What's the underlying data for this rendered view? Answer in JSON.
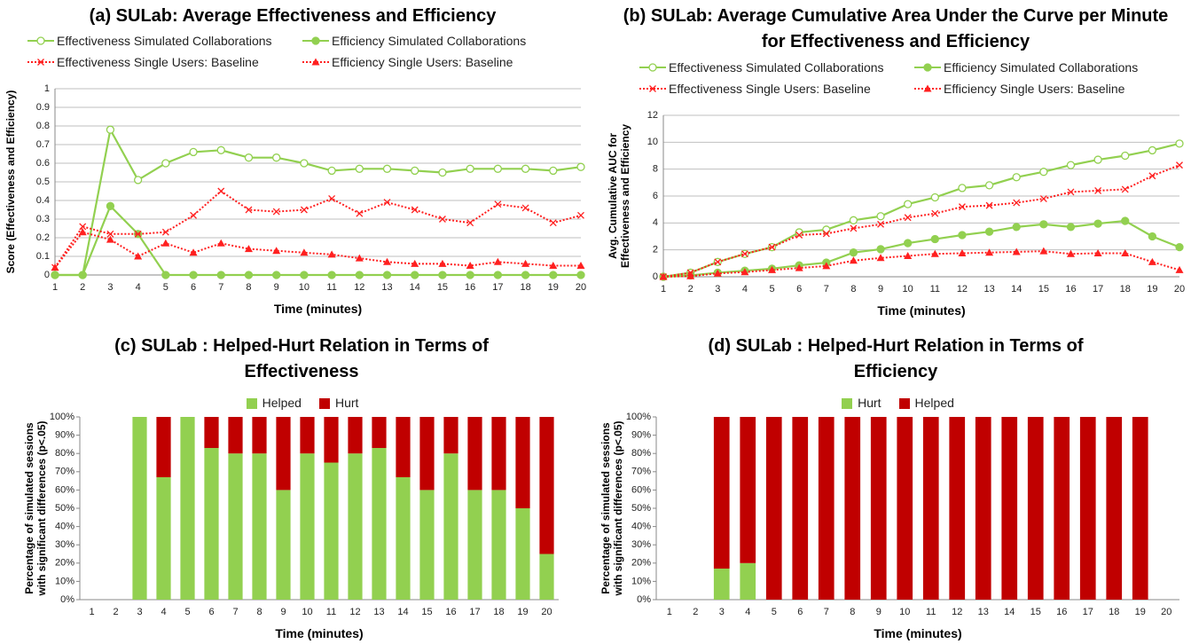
{
  "chart_data": [
    {
      "type": "line",
      "title": "(a) SULab: Average Effectiveness and Efficiency",
      "xlabel": "Time (minutes)",
      "ylabel": "Score (Effectiveness and Efficiency)",
      "categories": [
        1,
        2,
        3,
        4,
        5,
        6,
        7,
        8,
        9,
        10,
        11,
        12,
        13,
        14,
        15,
        16,
        17,
        18,
        19,
        20
      ],
      "ylim": [
        0,
        1
      ],
      "yticks": [
        0,
        0.1,
        0.2,
        0.3,
        0.4,
        0.5,
        0.6,
        0.7,
        0.8,
        0.9,
        1
      ],
      "grid": true,
      "series": [
        {
          "name": "Effectiveness Simulated Collaborations",
          "color": "#92d050",
          "marker": "circle-open",
          "dash": "solid",
          "values": [
            0,
            0,
            0.78,
            0.51,
            0.6,
            0.66,
            0.67,
            0.63,
            0.63,
            0.6,
            0.56,
            0.57,
            0.57,
            0.56,
            0.55,
            0.57,
            0.57,
            0.57,
            0.56,
            0.58
          ]
        },
        {
          "name": "Efficiency Simulated Collaborations",
          "color": "#92d050",
          "marker": "circle",
          "dash": "solid",
          "values": [
            0,
            0,
            0.37,
            0.22,
            0,
            0,
            0,
            0,
            0,
            0,
            0,
            0,
            0,
            0,
            0,
            0,
            0,
            0,
            0,
            0
          ]
        },
        {
          "name": "Effectiveness Single Users: Baseline",
          "color": "#ff2020",
          "marker": "x",
          "dash": "dotted",
          "values": [
            0.04,
            0.26,
            0.22,
            0.22,
            0.23,
            0.32,
            0.45,
            0.35,
            0.34,
            0.35,
            0.41,
            0.33,
            0.39,
            0.35,
            0.3,
            0.28,
            0.38,
            0.36,
            0.28,
            0.32
          ]
        },
        {
          "name": "Efficiency Single Users: Baseline",
          "color": "#ff2020",
          "marker": "triangle",
          "dash": "dotted",
          "values": [
            0.04,
            0.23,
            0.19,
            0.1,
            0.17,
            0.12,
            0.17,
            0.14,
            0.13,
            0.12,
            0.11,
            0.09,
            0.07,
            0.06,
            0.06,
            0.05,
            0.07,
            0.06,
            0.05,
            0.05
          ]
        }
      ]
    },
    {
      "type": "line",
      "title": "(b) SULab: Average Cumulative Area Under the Curve per Minute for Effectiveness and Efficiency",
      "xlabel": "Time (minutes)",
      "ylabel": "Avg. Cumulative AUC for Effectiveness and Efficiency",
      "categories": [
        1,
        2,
        3,
        4,
        5,
        6,
        7,
        8,
        9,
        10,
        11,
        12,
        13,
        14,
        15,
        16,
        17,
        18,
        19,
        20
      ],
      "ylim": [
        0,
        12
      ],
      "yticks": [
        0,
        2,
        4,
        6,
        8,
        10,
        12
      ],
      "grid": true,
      "series": [
        {
          "name": "Effectiveness Simulated Collaborations",
          "color": "#92d050",
          "marker": "circle-open",
          "dash": "solid",
          "values": [
            0,
            0.3,
            1.1,
            1.7,
            2.2,
            3.3,
            3.5,
            4.2,
            4.5,
            5.4,
            5.9,
            6.6,
            6.8,
            7.4,
            7.8,
            8.3,
            8.7,
            9.0,
            9.4,
            9.9
          ]
        },
        {
          "name": "Efficiency Simulated Collaborations",
          "color": "#92d050",
          "marker": "circle",
          "dash": "solid",
          "values": [
            0,
            0.1,
            0.3,
            0.45,
            0.6,
            0.85,
            1.05,
            1.8,
            2.05,
            2.5,
            2.8,
            3.1,
            3.35,
            3.7,
            3.9,
            3.7,
            3.95,
            4.15,
            3.0,
            2.2
          ]
        },
        {
          "name": "Effectiveness Single Users: Baseline",
          "color": "#ff2020",
          "marker": "x",
          "dash": "dotted",
          "values": [
            0,
            0.3,
            1.1,
            1.7,
            2.2,
            3.1,
            3.2,
            3.6,
            3.9,
            4.4,
            4.7,
            5.2,
            5.3,
            5.5,
            5.8,
            6.3,
            6.4,
            6.5,
            7.5,
            8.3
          ]
        },
        {
          "name": "Efficiency Single Users: Baseline",
          "color": "#ff2020",
          "marker": "triangle",
          "dash": "dotted",
          "values": [
            0,
            0.05,
            0.25,
            0.35,
            0.5,
            0.65,
            0.8,
            1.2,
            1.4,
            1.55,
            1.7,
            1.75,
            1.8,
            1.85,
            1.9,
            1.7,
            1.75,
            1.75,
            1.1,
            0.5
          ]
        }
      ]
    },
    {
      "type": "stacked-bar",
      "title": "(c) SULab : Helped-Hurt Relation in Terms of Effectiveness",
      "xlabel": "Time (minutes)",
      "ylabel": "Percentage of simulated sessions with significant differences (p<.05)",
      "categories": [
        1,
        2,
        3,
        4,
        5,
        6,
        7,
        8,
        9,
        10,
        11,
        12,
        13,
        14,
        15,
        16,
        17,
        18,
        19,
        20
      ],
      "ylim": [
        0,
        100
      ],
      "grid": false,
      "yticks": [
        {
          "value": 0,
          "label": "0%"
        },
        {
          "value": 10,
          "label": "10%"
        },
        {
          "value": 20,
          "label": "20%"
        },
        {
          "value": 30,
          "label": "30%"
        },
        {
          "value": 40,
          "label": "40%"
        },
        {
          "value": 50,
          "label": "50%"
        },
        {
          "value": 60,
          "label": "60%"
        },
        {
          "value": 70,
          "label": "70%"
        },
        {
          "value": 80,
          "label": "80%"
        },
        {
          "value": 90,
          "label": "90%"
        },
        {
          "value": 100,
          "label": "100%"
        }
      ],
      "series": [
        {
          "name": "Helped",
          "color": "#92d050",
          "values": [
            0,
            0,
            100,
            67,
            100,
            83,
            80,
            80,
            60,
            80,
            75,
            80,
            83,
            67,
            60,
            80,
            60,
            60,
            50,
            25
          ]
        },
        {
          "name": "Hurt",
          "color": "#c00000",
          "values": [
            0,
            0,
            0,
            33,
            0,
            17,
            20,
            20,
            40,
            20,
            25,
            20,
            17,
            33,
            40,
            20,
            40,
            40,
            50,
            75
          ]
        }
      ]
    },
    {
      "type": "stacked-bar",
      "title": "(d) SULab : Helped-Hurt Relation in Terms of Efficiency",
      "xlabel": "Time (minutes)",
      "ylabel": "Percentage of simulated sessions with significant differences (p<.05)",
      "categories": [
        1,
        2,
        3,
        4,
        5,
        6,
        7,
        8,
        9,
        10,
        11,
        12,
        13,
        14,
        15,
        16,
        17,
        18,
        19,
        20
      ],
      "ylim": [
        0,
        100
      ],
      "grid": false,
      "yticks": [
        {
          "value": 0,
          "label": "0%"
        },
        {
          "value": 10,
          "label": "10%"
        },
        {
          "value": 20,
          "label": "20%"
        },
        {
          "value": 30,
          "label": "30%"
        },
        {
          "value": 40,
          "label": "40%"
        },
        {
          "value": 50,
          "label": "50%"
        },
        {
          "value": 60,
          "label": "60%"
        },
        {
          "value": 70,
          "label": "70%"
        },
        {
          "value": 80,
          "label": "80%"
        },
        {
          "value": 90,
          "label": "90%"
        },
        {
          "value": 100,
          "label": "100%"
        }
      ],
      "series": [
        {
          "name": "Hurt",
          "color": "#92d050",
          "values": [
            0,
            0,
            17,
            20,
            0,
            0,
            0,
            0,
            0,
            0,
            0,
            0,
            0,
            0,
            0,
            0,
            0,
            0,
            0,
            0
          ]
        },
        {
          "name": "Helped",
          "color": "#c00000",
          "values": [
            0,
            0,
            83,
            80,
            100,
            100,
            100,
            100,
            100,
            100,
            100,
            100,
            100,
            100,
            100,
            100,
            100,
            100,
            100,
            0
          ]
        }
      ]
    }
  ]
}
